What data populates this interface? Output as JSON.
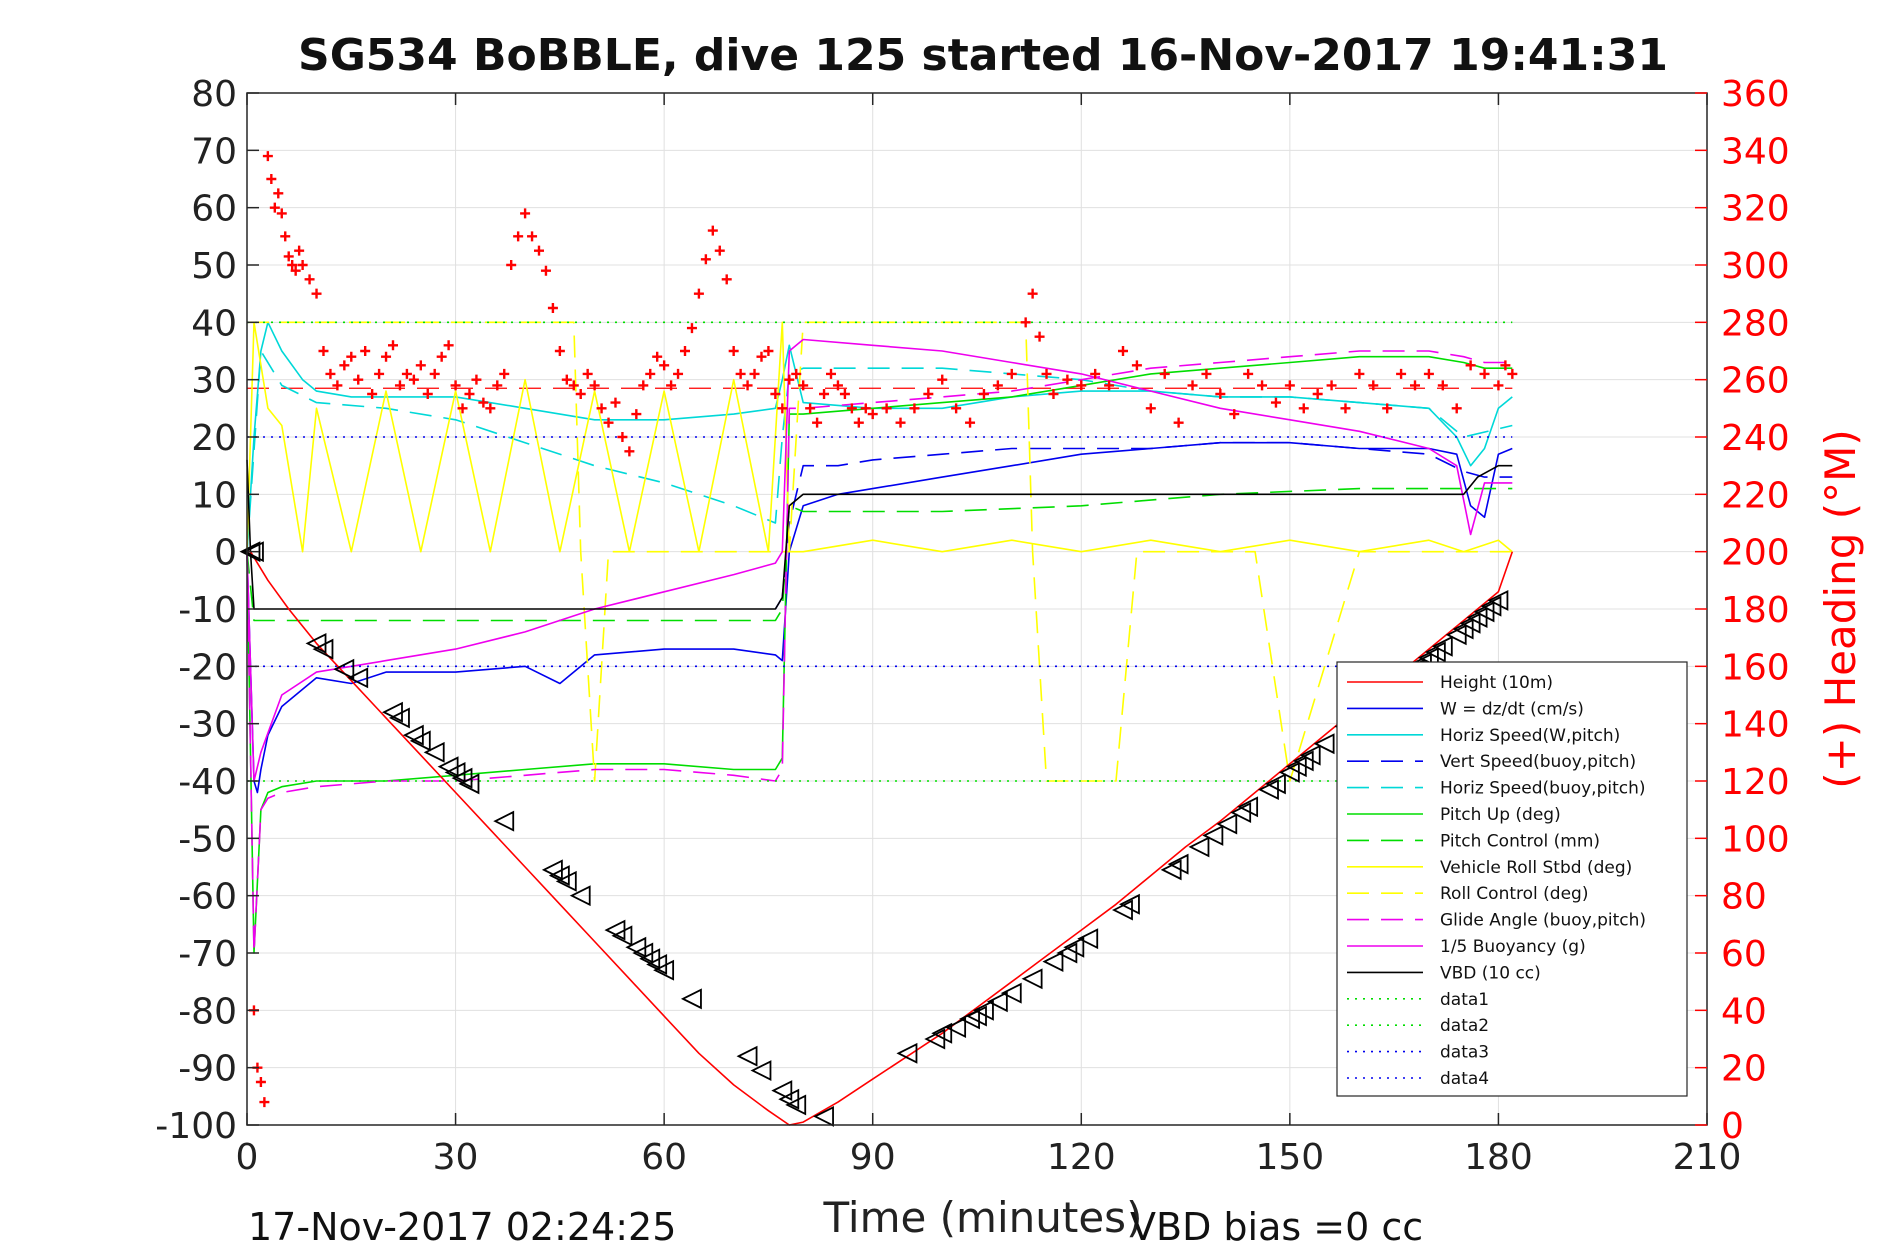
{
  "chart_data": {
    "type": "line",
    "title": "SG534 BoBBLE, dive 125 started 16-Nov-2017 19:41:31",
    "xlabel": "Time (minutes)",
    "ylabel": "",
    "y2label": "(+) Heading (°M)",
    "xlim": [
      0,
      210
    ],
    "ylim": [
      -100,
      80
    ],
    "y2lim": [
      0,
      360
    ],
    "x_ticks": [
      0,
      30,
      60,
      90,
      120,
      150,
      180,
      210
    ],
    "y_ticks": [
      80,
      70,
      60,
      50,
      40,
      30,
      20,
      10,
      0,
      -10,
      -20,
      -30,
      -40,
      -50,
      -60,
      -70,
      -80,
      -90,
      -100
    ],
    "y2_ticks": [
      360,
      340,
      320,
      300,
      280,
      260,
      240,
      220,
      200,
      180,
      160,
      140,
      120,
      100,
      80,
      60,
      40,
      20,
      0
    ],
    "grid": true,
    "legend_position": "lower-right",
    "footer_left": "17-Nov-2017 02:24:25",
    "footer_right": "VBD bias =0 cc",
    "series": [
      {
        "name": "Height (10m)",
        "color": "#ff0000",
        "style": "solid",
        "x": [
          0,
          0.5,
          1,
          3,
          6,
          10,
          15,
          20,
          25,
          30,
          35,
          40,
          45,
          50,
          55,
          60,
          65,
          70,
          75,
          78,
          80,
          85,
          90,
          95,
          100,
          105,
          110,
          115,
          120,
          125,
          130,
          135,
          140,
          145,
          150,
          155,
          160,
          165,
          170,
          175,
          180,
          182
        ],
        "y": [
          0,
          0,
          -1,
          -5,
          -10,
          -16,
          -22.5,
          -29,
          -35.5,
          -42,
          -48.5,
          -55,
          -61.5,
          -68,
          -74.5,
          -81,
          -87.5,
          -93,
          -97.5,
          -100,
          -99.5,
          -96,
          -92,
          -88,
          -84,
          -79.5,
          -75,
          -70.5,
          -66,
          -61.5,
          -56.5,
          -51.5,
          -47,
          -42,
          -37,
          -32,
          -27,
          -22,
          -17,
          -12,
          -7,
          0
        ]
      },
      {
        "name": "W = dz/dt (cm/s)",
        "color": "#0000ee",
        "style": "solid",
        "x": [
          0,
          0.5,
          1,
          1.5,
          2,
          3,
          5,
          8,
          10,
          15,
          20,
          30,
          40,
          45,
          50,
          60,
          70,
          76,
          77,
          78,
          80,
          85,
          90,
          100,
          110,
          120,
          130,
          140,
          150,
          160,
          170,
          174,
          176,
          178,
          180,
          182
        ],
        "y": [
          0,
          -20,
          -40,
          -42,
          -38,
          -32,
          -27,
          -24,
          -22,
          -23,
          -21,
          -21,
          -20,
          -23,
          -18,
          -17,
          -17,
          -18,
          -19,
          0,
          8,
          10,
          11,
          13,
          15,
          17,
          18,
          19,
          19,
          18,
          18,
          17,
          8,
          6,
          17,
          18
        ]
      },
      {
        "name": "Horiz Speed(W,pitch)",
        "color": "#00d8d8",
        "style": "solid",
        "x": [
          0,
          1,
          2,
          3,
          5,
          8,
          10,
          15,
          20,
          30,
          40,
          50,
          60,
          70,
          76,
          77,
          78,
          80,
          90,
          100,
          110,
          120,
          130,
          140,
          150,
          160,
          170,
          174,
          176,
          178,
          180,
          182
        ],
        "y": [
          0,
          20,
          35,
          40,
          35,
          30,
          28,
          27,
          27,
          27,
          25,
          23,
          23,
          24,
          25,
          30,
          36,
          26,
          25,
          25,
          27,
          28,
          28,
          27,
          27,
          26,
          25,
          20,
          15,
          18,
          25,
          27
        ]
      },
      {
        "name": "Vert Speed(buoy,pitch)",
        "color": "#0000ee",
        "style": "dashed",
        "x": [
          76,
          77,
          78,
          80,
          85,
          90,
          100,
          110,
          120,
          130,
          140,
          150,
          160,
          170,
          175,
          178,
          182
        ],
        "y": [
          -10,
          -8,
          5,
          15,
          15,
          16,
          17,
          18,
          18,
          18,
          19,
          19,
          18,
          17,
          14,
          13,
          13
        ]
      },
      {
        "name": "Horiz Speed(buoy,pitch)",
        "color": "#00d8d8",
        "style": "dashed",
        "x": [
          0,
          2,
          5,
          10,
          20,
          30,
          40,
          50,
          60,
          70,
          76,
          77,
          78,
          80,
          90,
          100,
          110,
          120,
          130,
          140,
          150,
          160,
          170,
          175,
          182
        ],
        "y": [
          0,
          35,
          29,
          26,
          25,
          23,
          19,
          15,
          12,
          8,
          5,
          20,
          31,
          32,
          32,
          32,
          31,
          30,
          28,
          27,
          27,
          26,
          25,
          20,
          22
        ]
      },
      {
        "name": "Pitch Up (deg)",
        "color": "#00dd00",
        "style": "solid",
        "x": [
          0,
          1,
          2,
          3,
          5,
          10,
          20,
          30,
          40,
          50,
          60,
          70,
          76,
          77,
          78,
          80,
          90,
          100,
          110,
          120,
          130,
          140,
          150,
          160,
          170,
          175,
          178,
          182
        ],
        "y": [
          0,
          -70,
          -45,
          -42,
          -41,
          -40,
          -40,
          -39,
          -38,
          -37,
          -37,
          -38,
          -38,
          -36,
          24,
          24,
          25,
          26,
          27,
          29,
          31,
          32,
          33,
          34,
          34,
          33,
          32,
          32
        ]
      },
      {
        "name": "Pitch Control (mm)",
        "color": "#00dd00",
        "style": "dashed",
        "x": [
          0,
          1,
          2,
          10,
          30,
          60,
          76,
          77,
          78,
          80,
          100,
          120,
          140,
          160,
          180,
          182
        ],
        "y": [
          0,
          -12,
          -12,
          -12,
          -12,
          -12,
          -12,
          -10,
          8,
          7,
          7,
          8,
          10,
          11,
          11,
          11
        ]
      },
      {
        "name": "Vehicle Roll Stbd (deg)",
        "color": "#ffff00",
        "style": "solid",
        "x": [
          0,
          1,
          3,
          5,
          8,
          10,
          15,
          20,
          25,
          30,
          35,
          40,
          45,
          50,
          55,
          60,
          65,
          70,
          75,
          77,
          78,
          80,
          90,
          100,
          110,
          120,
          130,
          140,
          150,
          160,
          170,
          175,
          180,
          182
        ],
        "y": [
          0,
          40,
          25,
          22,
          0,
          25,
          0,
          28,
          0,
          28,
          0,
          30,
          0,
          28,
          0,
          28,
          0,
          30,
          0,
          40,
          0,
          0,
          2,
          0,
          2,
          0,
          2,
          0,
          2,
          0,
          2,
          0,
          2,
          0
        ]
      },
      {
        "name": "Roll Control (deg)",
        "color": "#ffff00",
        "style": "dashed",
        "x": [
          0,
          10,
          30,
          47,
          48,
          50,
          52,
          55,
          78,
          80,
          100,
          112,
          113,
          115,
          125,
          128,
          145,
          150,
          160,
          175,
          180,
          182
        ],
        "y": [
          40,
          40,
          40,
          40,
          0,
          -40,
          0,
          0,
          0,
          40,
          40,
          40,
          0,
          -40,
          -40,
          0,
          0,
          -40,
          0,
          0,
          0,
          0
        ]
      },
      {
        "name": "Glide Angle (buoy,pitch)",
        "color": "#ee00ee",
        "style": "dashed",
        "x": [
          0,
          1,
          2,
          3,
          5,
          10,
          20,
          30,
          40,
          50,
          60,
          70,
          76,
          77,
          78,
          80,
          90,
          100,
          110,
          120,
          130,
          140,
          150,
          160,
          170,
          175,
          178,
          182
        ],
        "y": [
          0,
          -70,
          -45,
          -43,
          -42,
          -41,
          -40,
          -40,
          -39,
          -38,
          -38,
          -39,
          -40,
          -38,
          25,
          25,
          26,
          27,
          28,
          30,
          32,
          33,
          34,
          35,
          35,
          34,
          33,
          33
        ]
      },
      {
        "name": "1/5 Buoyancy (g)",
        "color": "#ee00ee",
        "style": "solid",
        "x": [
          0,
          1,
          2,
          5,
          10,
          20,
          30,
          40,
          50,
          60,
          70,
          76,
          77,
          78,
          80,
          90,
          100,
          110,
          120,
          130,
          140,
          150,
          160,
          170,
          174,
          176,
          178,
          182
        ],
        "y": [
          0,
          -40,
          -35,
          -25,
          -21,
          -19,
          -17,
          -14,
          -10,
          -7,
          -4,
          -2,
          0,
          35,
          37,
          36,
          35,
          33,
          31,
          28,
          25,
          23,
          21,
          18,
          15,
          3,
          12,
          12
        ]
      },
      {
        "name": "VBD (10 cc)",
        "color": "#000000",
        "style": "solid",
        "x": [
          0,
          0.5,
          1,
          2,
          10,
          30,
          60,
          76,
          77,
          78,
          80,
          90,
          120,
          150,
          175,
          177,
          180,
          182
        ],
        "y": [
          16,
          0,
          -10,
          -10,
          -10,
          -10,
          -10,
          -10,
          -8,
          8,
          10,
          10,
          10,
          10,
          10,
          13,
          15,
          15
        ]
      },
      {
        "name": "data1",
        "color": "#00dd00",
        "style": "dotted",
        "x": [
          0,
          182
        ],
        "y": [
          40,
          40
        ]
      },
      {
        "name": "data2",
        "color": "#00dd00",
        "style": "dotted",
        "x": [
          0,
          182
        ],
        "y": [
          -40,
          -40
        ]
      },
      {
        "name": "data3",
        "color": "#0000ee",
        "style": "dotted",
        "x": [
          0,
          182
        ],
        "y": [
          20,
          20
        ]
      },
      {
        "name": "data4",
        "color": "#0000ee",
        "style": "dotted",
        "x": [
          0,
          182
        ],
        "y": [
          -20,
          -20
        ]
      }
    ],
    "reference_lines": [
      {
        "color": "#ff0000",
        "style": "dashed",
        "axis": "y2",
        "value": 257
      }
    ],
    "heading_series": {
      "axis": "y2",
      "color": "#ff0000",
      "marker": "+",
      "x": [
        1,
        1.5,
        2,
        2.5,
        3,
        3.5,
        4,
        4.5,
        5,
        5.5,
        6,
        6.5,
        7,
        7.5,
        8,
        9,
        10,
        11,
        12,
        13,
        14,
        15,
        16,
        17,
        18,
        19,
        20,
        21,
        22,
        23,
        24,
        25,
        26,
        27,
        28,
        29,
        30,
        31,
        32,
        33,
        34,
        35,
        36,
        37,
        38,
        39,
        40,
        41,
        42,
        43,
        44,
        45,
        46,
        47,
        48,
        49,
        50,
        51,
        52,
        53,
        54,
        55,
        56,
        57,
        58,
        59,
        60,
        61,
        62,
        63,
        64,
        65,
        66,
        67,
        68,
        69,
        70,
        71,
        72,
        73,
        74,
        75,
        76,
        77,
        78,
        79,
        80,
        81,
        82,
        83,
        84,
        85,
        86,
        87,
        88,
        89,
        90,
        92,
        94,
        96,
        98,
        100,
        102,
        104,
        106,
        108,
        110,
        112,
        113,
        114,
        115,
        116,
        118,
        120,
        122,
        124,
        126,
        128,
        130,
        132,
        134,
        136,
        138,
        140,
        142,
        144,
        146,
        148,
        150,
        152,
        154,
        156,
        158,
        160,
        162,
        164,
        166,
        168,
        170,
        172,
        174,
        176,
        178,
        180,
        181,
        182
      ],
      "y": [
        40,
        20,
        15,
        8,
        338,
        330,
        320,
        325,
        318,
        310,
        303,
        300,
        298,
        305,
        300,
        295,
        290,
        270,
        262,
        258,
        265,
        268,
        260,
        270,
        255,
        262,
        268,
        272,
        258,
        262,
        260,
        265,
        255,
        262,
        268,
        272,
        258,
        250,
        255,
        260,
        252,
        250,
        258,
        262,
        300,
        310,
        318,
        310,
        305,
        298,
        285,
        270,
        260,
        258,
        255,
        262,
        258,
        250,
        245,
        252,
        240,
        235,
        248,
        258,
        262,
        268,
        265,
        258,
        262,
        270,
        278,
        290,
        302,
        312,
        305,
        295,
        270,
        262,
        258,
        262,
        268,
        270,
        255,
        250,
        260,
        262,
        258,
        250,
        245,
        255,
        262,
        258,
        255,
        250,
        245,
        250,
        248,
        250,
        245,
        250,
        255,
        260,
        250,
        245,
        255,
        258,
        262,
        280,
        290,
        275,
        262,
        255,
        260,
        258,
        262,
        258,
        270,
        265,
        250,
        262,
        245,
        258,
        262,
        255,
        248,
        262,
        258,
        252,
        258,
        250,
        255,
        258,
        250,
        262,
        258,
        250,
        262,
        258,
        262,
        258,
        250,
        265,
        262,
        258,
        265,
        262
      ]
    },
    "markers": {
      "color": "#000000",
      "shape": "triangle-left",
      "x": [
        0.5,
        1,
        10,
        11,
        14,
        16,
        21,
        22,
        24,
        25,
        27,
        29,
        30,
        31,
        32,
        37,
        44,
        45,
        46,
        48,
        53,
        54,
        56,
        57,
        58,
        59,
        60,
        64,
        72,
        74,
        77,
        78,
        79,
        83,
        95,
        99,
        100,
        102,
        104,
        105,
        106,
        108,
        110,
        113,
        116,
        118,
        119,
        121,
        126,
        127,
        133,
        134,
        137,
        139,
        141,
        143,
        144,
        147,
        148,
        150,
        151,
        152,
        153,
        155,
        158,
        159,
        160,
        161,
        162,
        163,
        165,
        166,
        168,
        169,
        170,
        171,
        172,
        174,
        175,
        176,
        177,
        178,
        179,
        180
      ],
      "y": [
        0,
        0,
        -16,
        -17,
        -20.5,
        -22,
        -28,
        -29,
        -32,
        -33,
        -35,
        -37.5,
        -38.5,
        -39.5,
        -40.5,
        -47,
        -55.5,
        -56.5,
        -57.5,
        -60,
        -66,
        -67,
        -69,
        -70,
        -71,
        -72,
        -73,
        -78,
        -88,
        -90.5,
        -94,
        -95.5,
        -96.5,
        -98.5,
        -87.5,
        -85,
        -84,
        -83,
        -81.5,
        -81,
        -80,
        -78.5,
        -77,
        -74.5,
        -71.5,
        -70,
        -69,
        -67.5,
        -62.5,
        -61.5,
        -55.5,
        -54.5,
        -51.5,
        -49.5,
        -47.5,
        -45.5,
        -44.5,
        -41.5,
        -40.5,
        -38.5,
        -37.5,
        -36.5,
        -35.5,
        -33.5,
        -30.5,
        -29.5,
        -28.5,
        -27.5,
        -26.5,
        -25.5,
        -23.5,
        -22.5,
        -20.5,
        -19.5,
        -18.5,
        -17.5,
        -16.5,
        -14.5,
        -13.5,
        -12.5,
        -11.5,
        -10.5,
        -9.5,
        -8.5
      ]
    }
  }
}
